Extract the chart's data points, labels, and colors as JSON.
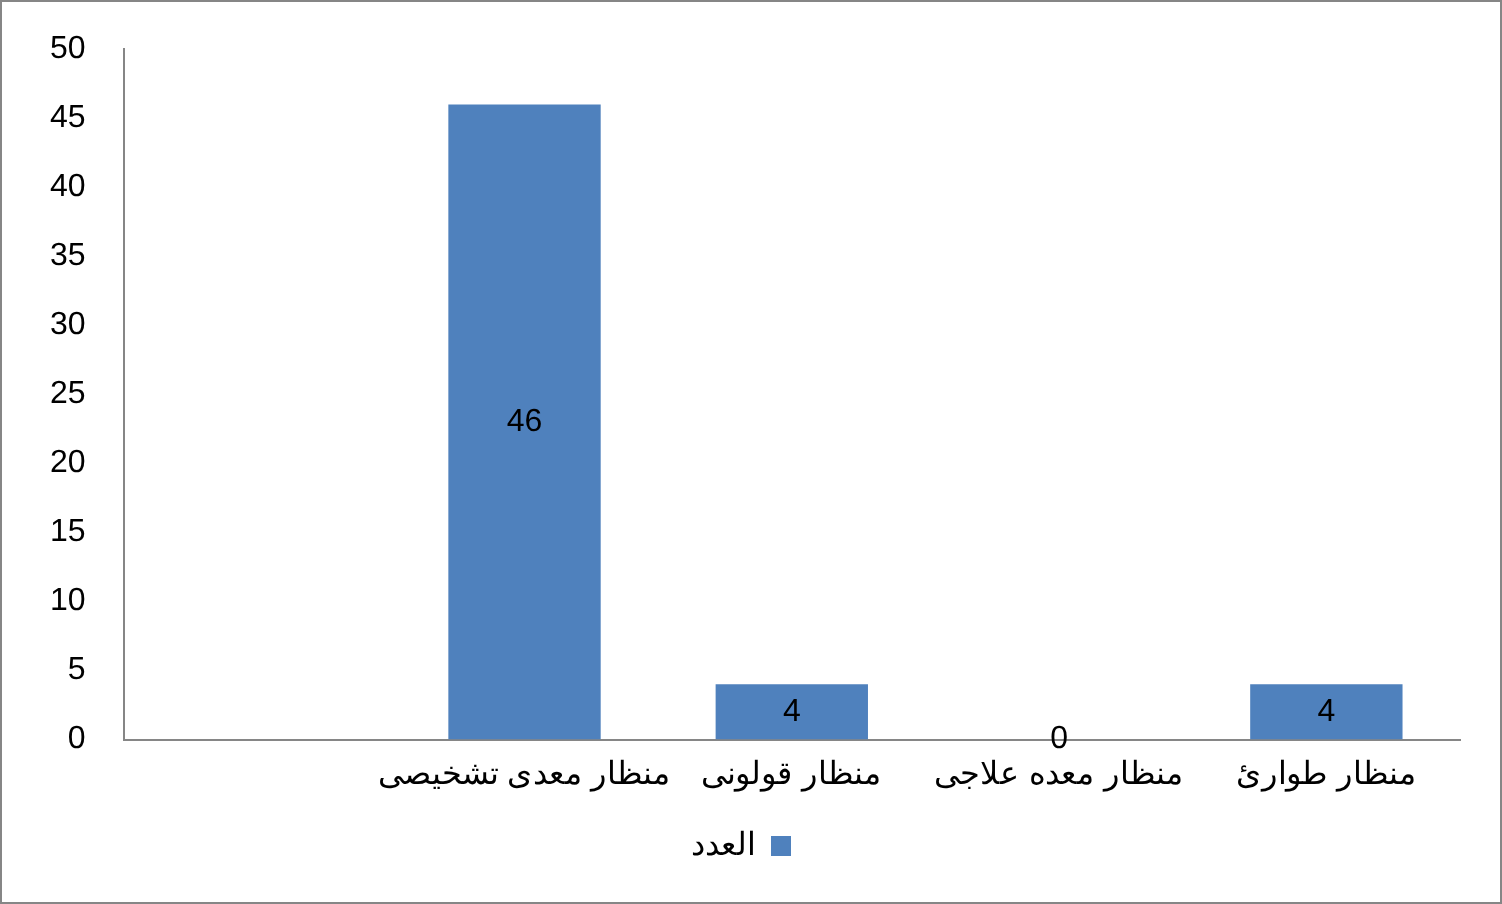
{
  "chart_data": {
    "type": "bar",
    "categories": [
      null,
      "منظار معدی تشخیصی",
      "منظار قولونی",
      "منظار معده علاجی",
      "منظار طوارئ"
    ],
    "series": [
      {
        "name": "العدد",
        "color": "#4f81bd",
        "values": [
          null,
          46,
          4,
          0,
          4
        ]
      }
    ],
    "ylim": [
      0,
      50
    ],
    "yticks": [
      0,
      5,
      10,
      15,
      20,
      25,
      30,
      35,
      40,
      45,
      50
    ],
    "grid": false,
    "legend": "bottom",
    "data_labels": true
  }
}
